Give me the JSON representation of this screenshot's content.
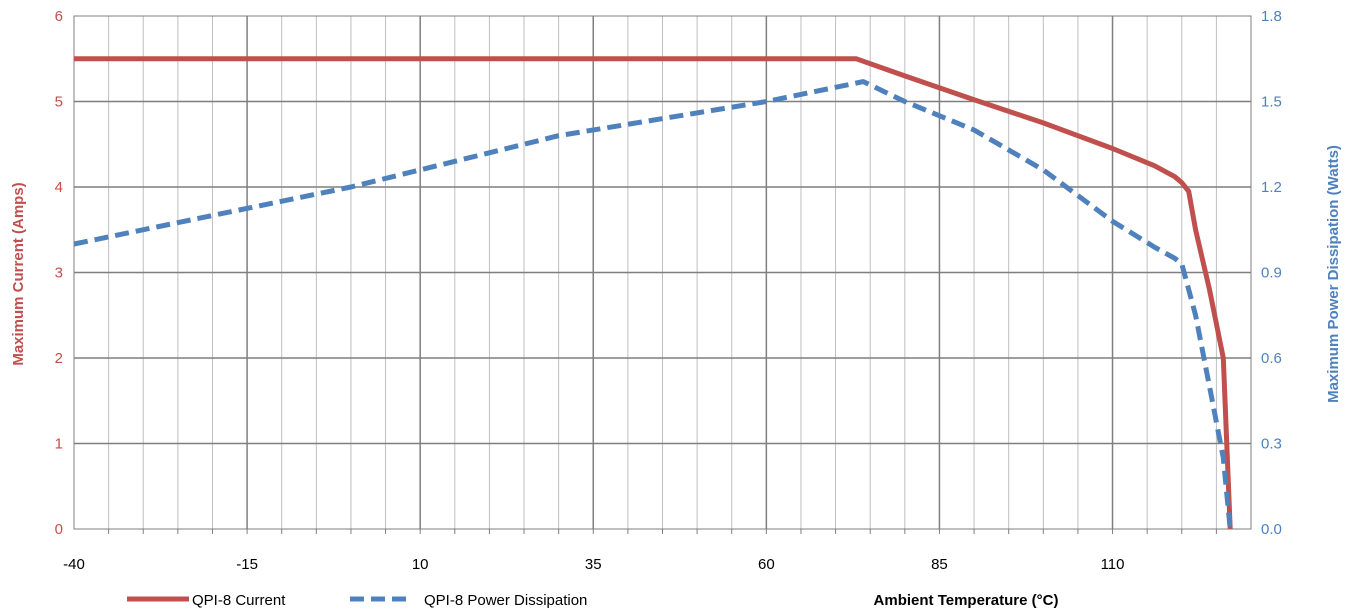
{
  "chart_data": {
    "type": "line",
    "title": "",
    "xlabel": "Ambient Temperature (°C)",
    "ylabel_left": "Maximum Current (Amps)",
    "ylabel_right": "Maximum Power Dissipation (Watts)",
    "xlim": [
      -40,
      130
    ],
    "ylim_left": [
      0,
      6
    ],
    "ylim_right": [
      0,
      1.8
    ],
    "x_ticks": [
      "-40",
      "-15",
      "10",
      "35",
      "60",
      "85",
      "110"
    ],
    "y_left_ticks": [
      "0",
      "1",
      "2",
      "3",
      "4",
      "5",
      "6"
    ],
    "y_right_ticks": [
      "0.0",
      "0.3",
      "0.6",
      "0.9",
      "1.2",
      "1.5",
      "1.8"
    ],
    "grid": true,
    "legend_position": "bottom-left",
    "colors": {
      "current": "#c0504d",
      "power": "#4f81bd",
      "grid_major": "#7f7f7f",
      "grid_minor": "#bfbfbf"
    },
    "series": [
      {
        "name": "QPI-8 Current",
        "axis": "left",
        "style": "solid",
        "x": [
          -40,
          73,
          80,
          90,
          100,
          110,
          116,
          119,
          120,
          121,
          122,
          124,
          126,
          127
        ],
        "y": [
          5.5,
          5.5,
          5.3,
          5.02,
          4.75,
          4.45,
          4.25,
          4.12,
          4.05,
          3.95,
          3.5,
          2.8,
          2.0,
          0
        ]
      },
      {
        "name": "QPI-8 Power Dissipation",
        "axis": "right",
        "style": "dashed",
        "x": [
          -40,
          0,
          30,
          60,
          74,
          80,
          90,
          100,
          110,
          116,
          119,
          120,
          122,
          124,
          126,
          127
        ],
        "y": [
          1.0,
          1.2,
          1.38,
          1.5,
          1.57,
          1.5,
          1.4,
          1.26,
          1.08,
          0.99,
          0.95,
          0.93,
          0.75,
          0.5,
          0.25,
          0
        ]
      }
    ]
  }
}
